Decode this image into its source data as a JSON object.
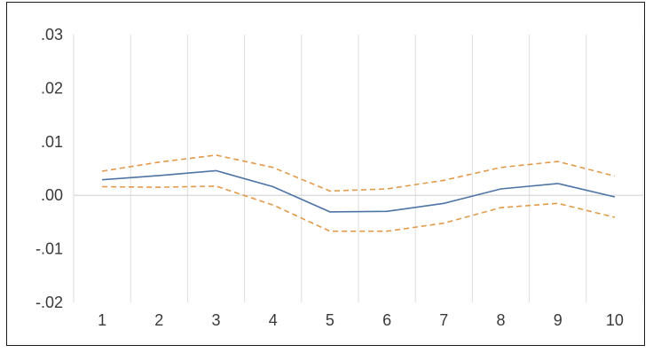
{
  "chart_data": {
    "type": "line",
    "categories": [
      "1",
      "2",
      "3",
      "4",
      "5",
      "6",
      "7",
      "8",
      "9",
      "10"
    ],
    "series": [
      {
        "role": "estimate",
        "style": "solid",
        "color": "#4e74a6",
        "values": [
          0.0029,
          0.0037,
          0.0046,
          0.0016,
          -0.0031,
          -0.003,
          -0.0015,
          0.0012,
          0.0022,
          -0.0003
        ]
      },
      {
        "role": "upper-bound",
        "style": "dashed",
        "color": "#e29a4a",
        "values": [
          0.0045,
          0.0062,
          0.0075,
          0.0052,
          0.0008,
          0.0012,
          0.0028,
          0.0052,
          0.0063,
          0.0036
        ]
      },
      {
        "role": "lower-bound",
        "style": "dashed",
        "color": "#e29a4a",
        "values": [
          0.0016,
          0.0015,
          0.0017,
          -0.0018,
          -0.0067,
          -0.0067,
          -0.0052,
          -0.0023,
          -0.0015,
          -0.0041
        ]
      }
    ],
    "yticks": [
      ".03",
      ".02",
      ".01",
      ".00",
      "-.01",
      "-.02"
    ],
    "ylim": [
      -0.02,
      0.03
    ],
    "xlabel": "",
    "ylabel": "",
    "grid": "vertical",
    "legend": "none"
  }
}
